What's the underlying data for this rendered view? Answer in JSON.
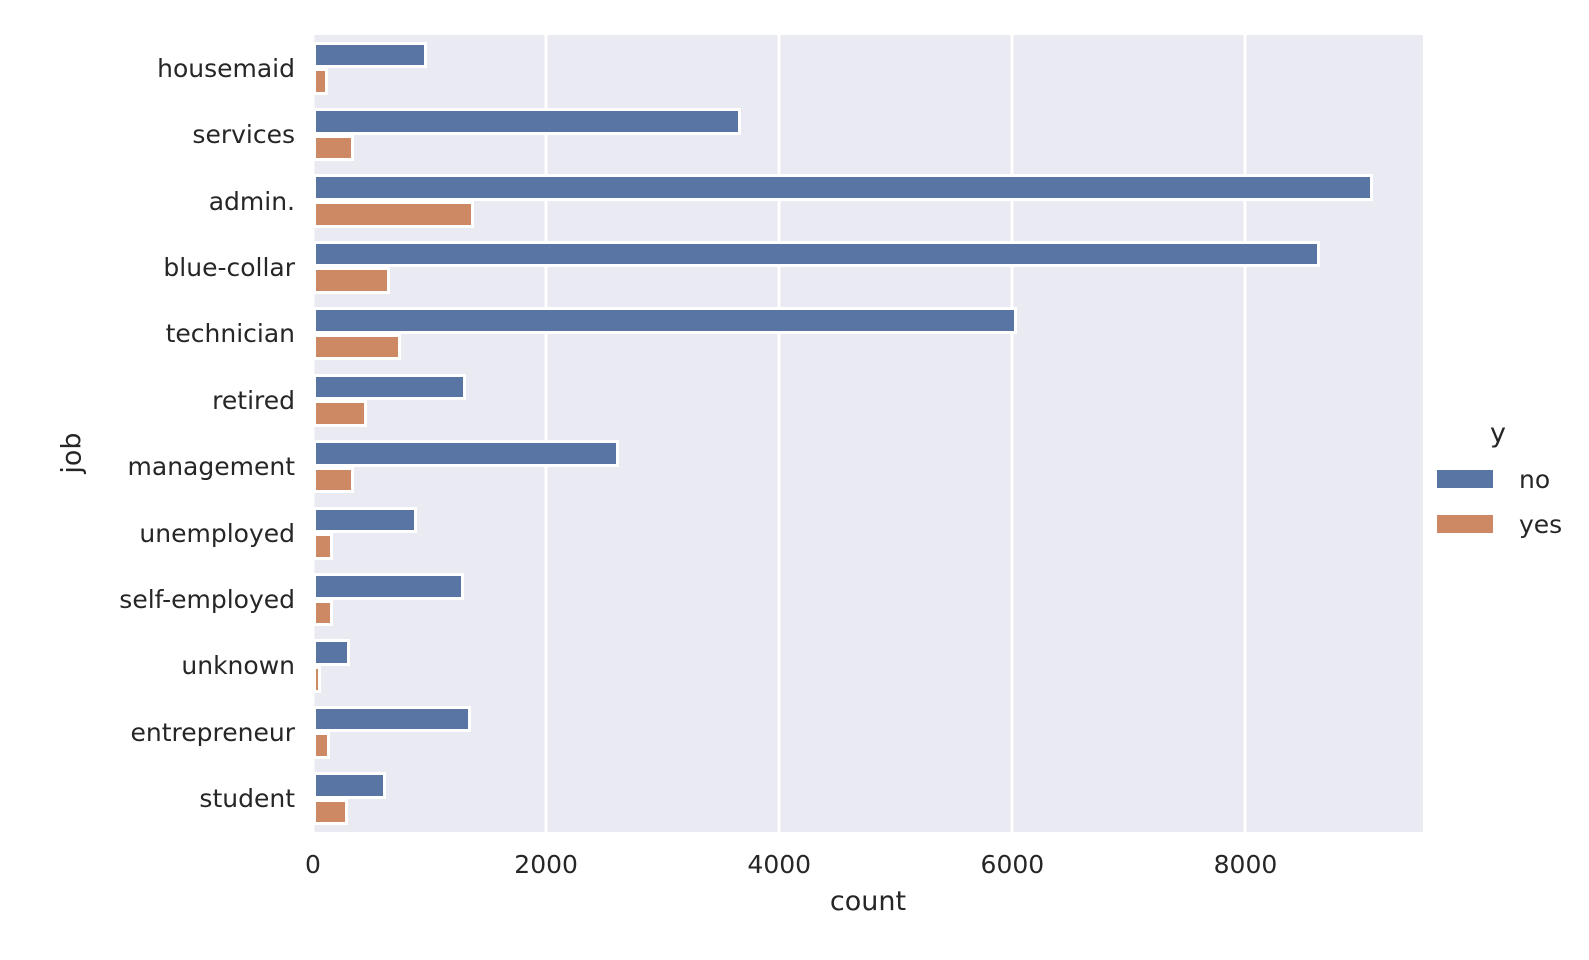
{
  "chart_data": {
    "type": "bar",
    "orientation": "horizontal",
    "title": "",
    "xlabel": "count",
    "ylabel": "job",
    "categories": [
      "housemaid",
      "services",
      "admin.",
      "blue-collar",
      "technician",
      "retired",
      "management",
      "unemployed",
      "self-employed",
      "unknown",
      "entrepreneur",
      "student"
    ],
    "series": [
      {
        "name": "no",
        "color": "#5975A3",
        "values": [
          954,
          3646,
          9070,
          8616,
          6013,
          1286,
          2596,
          870,
          1272,
          293,
          1332,
          600
        ]
      },
      {
        "name": "yes",
        "color": "#CC8963",
        "values": [
          106,
          323,
          1352,
          638,
          730,
          434,
          328,
          144,
          149,
          37,
          124,
          275
        ]
      }
    ],
    "x_ticks": [
      0,
      2000,
      4000,
      6000,
      8000
    ],
    "x_tick_labels": [
      "0",
      "2000",
      "4000",
      "6000",
      "8000"
    ],
    "xlim": [
      0,
      9523
    ],
    "legend": {
      "title": "y",
      "entries": [
        "no",
        "yes"
      ],
      "position": "right-outside"
    },
    "grid": "vertical",
    "colors": {
      "plot_background": "#EAEAF2",
      "gridline": "#FFFFFF",
      "bar_edge": "#FFFFFF",
      "text": "#262626",
      "figure_background": "#FFFFFF"
    }
  }
}
